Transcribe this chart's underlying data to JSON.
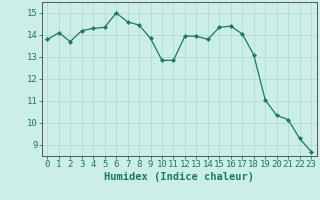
{
  "x": [
    0,
    1,
    2,
    3,
    4,
    5,
    6,
    7,
    8,
    9,
    10,
    11,
    12,
    13,
    14,
    15,
    16,
    17,
    18,
    19,
    20,
    21,
    22,
    23
  ],
  "y": [
    13.8,
    14.1,
    13.7,
    14.2,
    14.3,
    14.35,
    15.0,
    14.6,
    14.45,
    13.85,
    12.85,
    12.85,
    13.95,
    13.95,
    13.8,
    14.35,
    14.4,
    14.05,
    13.1,
    11.05,
    10.35,
    10.15,
    9.3,
    8.7
  ],
  "line_color": "#1a7a5e",
  "marker": "D",
  "marker_size": 2.2,
  "bg_color": "#cceee8",
  "grid_color": "#b8d8d4",
  "xlabel": "Humidex (Indice chaleur)",
  "ylabel": "",
  "xlim": [
    -0.5,
    23.5
  ],
  "ylim": [
    8.5,
    15.5
  ],
  "yticks": [
    9,
    10,
    11,
    12,
    13,
    14,
    15
  ],
  "xticks": [
    0,
    1,
    2,
    3,
    4,
    5,
    6,
    7,
    8,
    9,
    10,
    11,
    12,
    13,
    14,
    15,
    16,
    17,
    18,
    19,
    20,
    21,
    22,
    23
  ],
  "axis_color": "#555555",
  "font_size_label": 7.5,
  "font_size_tick": 6.5
}
